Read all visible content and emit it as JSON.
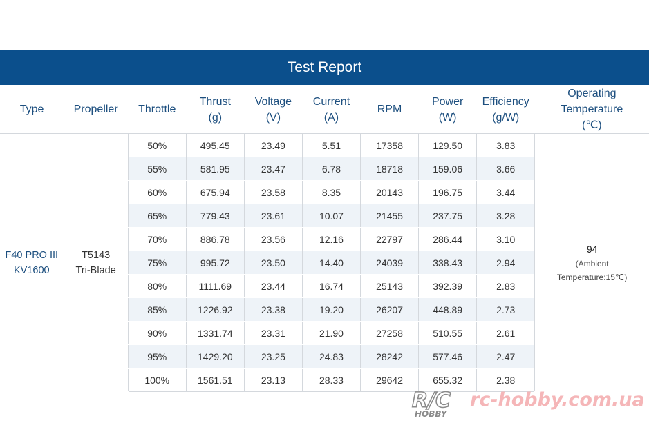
{
  "title": "Test Report",
  "headers": {
    "type": [
      "Type"
    ],
    "propeller": [
      "Propeller"
    ],
    "throttle": [
      "Throttle"
    ],
    "thrust": [
      "Thrust",
      "(g)"
    ],
    "voltage": [
      "Voltage",
      "(V)"
    ],
    "current": [
      "Current",
      "(A)"
    ],
    "rpm": [
      "RPM"
    ],
    "power": [
      "Power",
      "(W)"
    ],
    "efficiency": [
      "Efficiency",
      "(g/W)"
    ],
    "temperature": [
      "Operating",
      "Temperature",
      "(℃)"
    ]
  },
  "motor_type": [
    "F40 PRO III",
    "KV1600"
  ],
  "propeller": [
    "T5143",
    "Tri-Blade"
  ],
  "temperature": {
    "value": "94",
    "note_line1": "(Ambient",
    "note_line2": "Temperature:15℃)"
  },
  "rows": [
    {
      "throttle": "50%",
      "thrust": "495.45",
      "voltage": "23.49",
      "current": "5.51",
      "rpm": "17358",
      "power": "129.50",
      "efficiency": "3.83"
    },
    {
      "throttle": "55%",
      "thrust": "581.95",
      "voltage": "23.47",
      "current": "6.78",
      "rpm": "18718",
      "power": "159.06",
      "efficiency": "3.66"
    },
    {
      "throttle": "60%",
      "thrust": "675.94",
      "voltage": "23.58",
      "current": "8.35",
      "rpm": "20143",
      "power": "196.75",
      "efficiency": "3.44"
    },
    {
      "throttle": "65%",
      "thrust": "779.43",
      "voltage": "23.61",
      "current": "10.07",
      "rpm": "21455",
      "power": "237.75",
      "efficiency": "3.28"
    },
    {
      "throttle": "70%",
      "thrust": "886.78",
      "voltage": "23.56",
      "current": "12.16",
      "rpm": "22797",
      "power": "286.44",
      "efficiency": "3.10"
    },
    {
      "throttle": "75%",
      "thrust": "995.72",
      "voltage": "23.50",
      "current": "14.40",
      "rpm": "24039",
      "power": "338.43",
      "efficiency": "2.94"
    },
    {
      "throttle": "80%",
      "thrust": "1111.69",
      "voltage": "23.44",
      "current": "16.74",
      "rpm": "25143",
      "power": "392.39",
      "efficiency": "2.83"
    },
    {
      "throttle": "85%",
      "thrust": "1226.92",
      "voltage": "23.38",
      "current": "19.20",
      "rpm": "26207",
      "power": "448.89",
      "efficiency": "2.73"
    },
    {
      "throttle": "90%",
      "thrust": "1331.74",
      "voltage": "23.31",
      "current": "21.90",
      "rpm": "27258",
      "power": "510.55",
      "efficiency": "2.61"
    },
    {
      "throttle": "95%",
      "thrust": "1429.20",
      "voltage": "23.25",
      "current": "24.83",
      "rpm": "28242",
      "power": "577.46",
      "efficiency": "2.47"
    },
    {
      "throttle": "100%",
      "thrust": "1561.51",
      "voltage": "23.13",
      "current": "28.33",
      "rpm": "29642",
      "power": "655.32",
      "efficiency": "2.38"
    }
  ],
  "watermark": {
    "logo_text": "R/C",
    "logo_sub": "HOBBY",
    "url": "rc-hobby.com.ua"
  },
  "colors": {
    "banner": "#0b4f8c",
    "header_text": "#1d4f7f",
    "row_shade": "#eef3f8",
    "watermark": "#f5b6b8"
  }
}
